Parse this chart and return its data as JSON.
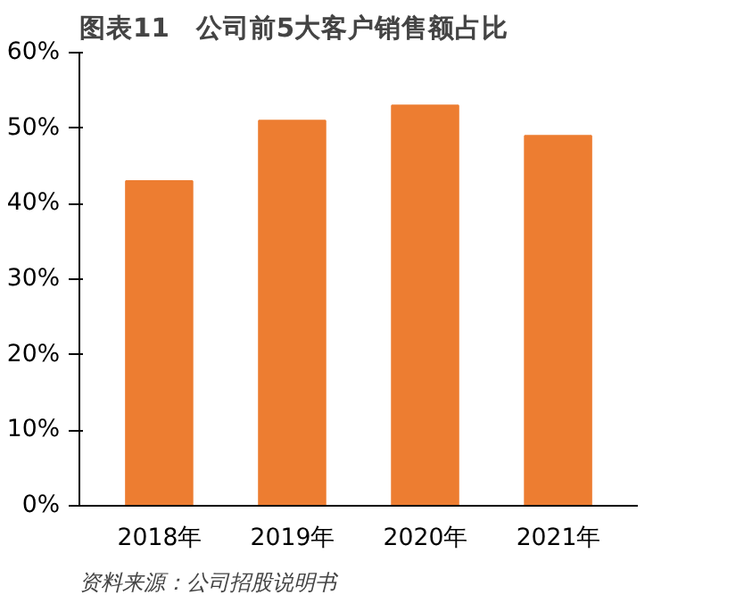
{
  "chart_data": {
    "type": "bar",
    "title": "图表11　公司前5大客户销售额占比",
    "categories": [
      "2018年",
      "2019年",
      "2020年",
      "2021年"
    ],
    "values": [
      43,
      51,
      53,
      49
    ],
    "color": "#ed7d31",
    "ylim": [
      0,
      60
    ],
    "yticks": [
      {
        "value": 0,
        "label": "0%"
      },
      {
        "value": 10,
        "label": "10%"
      },
      {
        "value": 20,
        "label": "20%"
      },
      {
        "value": 30,
        "label": "30%"
      },
      {
        "value": 40,
        "label": "40%"
      },
      {
        "value": 50,
        "label": "50%"
      },
      {
        "value": 60,
        "label": "60%"
      }
    ],
    "grid": false,
    "annotations": [
      "资料来源：公司招股说明书"
    ]
  }
}
